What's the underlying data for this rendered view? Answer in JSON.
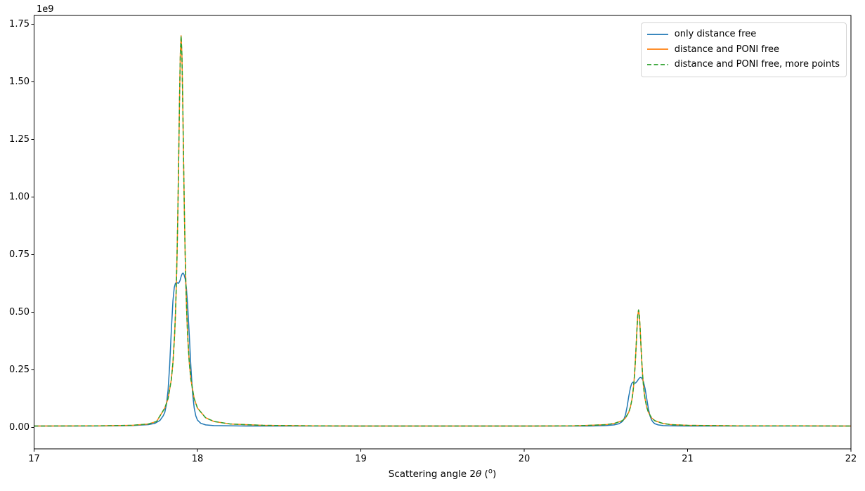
{
  "figure": {
    "background": "#ffffff",
    "xlabel_parts": {
      "pre": "Scattering angle 2",
      "theta": "θ",
      "open_paren": " (",
      "degree_sup": "o",
      "close_paren": ")"
    }
  },
  "chart_data": {
    "type": "line",
    "title": "",
    "xlabel": "Scattering angle 2θ (°)",
    "ylabel": "",
    "y_offset_label": "1e9",
    "grid": false,
    "legend_position": "upper right",
    "legend_border_color": "#d4d4d4",
    "axis_color": "#000000",
    "xlim": [
      17,
      22
    ],
    "ylim_e9": [
      -0.093,
      1.788
    ],
    "x_ticks": [
      17,
      18,
      19,
      20,
      21,
      22
    ],
    "x_tick_labels": [
      "17",
      "18",
      "19",
      "20",
      "21",
      "22"
    ],
    "y_ticks_e9": [
      0.0,
      0.25,
      0.5,
      0.75,
      1.0,
      1.25,
      1.5,
      1.75
    ],
    "y_tick_labels": [
      "0.00",
      "0.25",
      "0.50",
      "0.75",
      "1.00",
      "1.25",
      "1.50",
      "1.75"
    ],
    "series": [
      {
        "name": "only distance free",
        "color": "#1f77b4",
        "dash": null,
        "linewidth": 1.5,
        "curve": "broad_double_hump"
      },
      {
        "name": "distance and PONI free",
        "color": "#ff7f0e",
        "dash": null,
        "linewidth": 1.5,
        "curve": "narrow"
      },
      {
        "name": "distance and PONI free, more points",
        "color": "#2ca02c",
        "dash": [
          6,
          3.5
        ],
        "linewidth": 1.5,
        "curve": "narrow"
      }
    ],
    "peaks": {
      "narrow": [
        {
          "center": 17.9,
          "height_e9": 1.7
        },
        {
          "center": 20.7,
          "height_e9": 0.51
        }
      ],
      "broad_double_hump": [
        {
          "center": 17.91,
          "height_e9": 0.67,
          "shoulder_e9": 0.63
        },
        {
          "center": 20.715,
          "height_e9": 0.22,
          "shoulder_e9": 0.195
        }
      ]
    },
    "baseline_e9": 0.006,
    "curves_e9": {
      "broad_double_hump": [
        [
          17.0,
          0.006
        ],
        [
          17.3,
          0.006
        ],
        [
          17.5,
          0.007
        ],
        [
          17.6,
          0.008
        ],
        [
          17.7,
          0.012
        ],
        [
          17.74,
          0.018
        ],
        [
          17.77,
          0.03
        ],
        [
          17.79,
          0.05
        ],
        [
          17.8,
          0.065
        ],
        [
          17.81,
          0.1
        ],
        [
          17.82,
          0.16
        ],
        [
          17.83,
          0.27
        ],
        [
          17.84,
          0.42
        ],
        [
          17.85,
          0.55
        ],
        [
          17.858,
          0.607
        ],
        [
          17.865,
          0.625
        ],
        [
          17.872,
          0.63
        ],
        [
          17.878,
          0.627
        ],
        [
          17.885,
          0.626
        ],
        [
          17.893,
          0.637
        ],
        [
          17.9,
          0.655
        ],
        [
          17.906,
          0.666
        ],
        [
          17.912,
          0.67
        ],
        [
          17.918,
          0.663
        ],
        [
          17.925,
          0.645
        ],
        [
          17.932,
          0.607
        ],
        [
          17.94,
          0.53
        ],
        [
          17.95,
          0.4
        ],
        [
          17.96,
          0.26
        ],
        [
          17.97,
          0.15
        ],
        [
          17.98,
          0.085
        ],
        [
          17.99,
          0.05
        ],
        [
          18.0,
          0.032
        ],
        [
          18.02,
          0.018
        ],
        [
          18.05,
          0.011
        ],
        [
          18.1,
          0.008
        ],
        [
          18.3,
          0.006
        ],
        [
          19.0,
          0.006
        ],
        [
          20.0,
          0.006
        ],
        [
          20.4,
          0.006
        ],
        [
          20.5,
          0.008
        ],
        [
          20.55,
          0.011
        ],
        [
          20.58,
          0.016
        ],
        [
          20.6,
          0.025
        ],
        [
          20.61,
          0.035
        ],
        [
          20.62,
          0.055
        ],
        [
          20.63,
          0.09
        ],
        [
          20.64,
          0.135
        ],
        [
          20.65,
          0.172
        ],
        [
          20.658,
          0.191
        ],
        [
          20.665,
          0.196
        ],
        [
          20.672,
          0.193
        ],
        [
          20.68,
          0.192
        ],
        [
          20.69,
          0.199
        ],
        [
          20.7,
          0.21
        ],
        [
          20.708,
          0.216
        ],
        [
          20.715,
          0.217
        ],
        [
          20.722,
          0.212
        ],
        [
          20.73,
          0.198
        ],
        [
          20.74,
          0.168
        ],
        [
          20.75,
          0.125
        ],
        [
          20.76,
          0.082
        ],
        [
          20.77,
          0.05
        ],
        [
          20.78,
          0.032
        ],
        [
          20.79,
          0.022
        ],
        [
          20.8,
          0.016
        ],
        [
          20.82,
          0.011
        ],
        [
          20.85,
          0.008
        ],
        [
          20.9,
          0.007
        ],
        [
          21.0,
          0.006
        ],
        [
          21.5,
          0.006
        ],
        [
          22.0,
          0.006
        ]
      ],
      "narrow": [
        [
          17.0,
          0.006
        ],
        [
          17.4,
          0.007
        ],
        [
          17.6,
          0.009
        ],
        [
          17.7,
          0.015
        ],
        [
          17.75,
          0.026
        ],
        [
          17.8,
          0.084
        ],
        [
          17.82,
          0.125
        ],
        [
          17.84,
          0.207
        ],
        [
          17.85,
          0.281
        ],
        [
          17.86,
          0.399
        ],
        [
          17.865,
          0.486
        ],
        [
          17.87,
          0.598
        ],
        [
          17.875,
          0.745
        ],
        [
          17.88,
          0.933
        ],
        [
          17.885,
          1.162
        ],
        [
          17.89,
          1.41
        ],
        [
          17.895,
          1.617
        ],
        [
          17.9,
          1.7
        ],
        [
          17.905,
          1.617
        ],
        [
          17.91,
          1.41
        ],
        [
          17.915,
          1.162
        ],
        [
          17.92,
          0.933
        ],
        [
          17.925,
          0.745
        ],
        [
          17.93,
          0.598
        ],
        [
          17.935,
          0.486
        ],
        [
          17.94,
          0.399
        ],
        [
          17.95,
          0.281
        ],
        [
          17.96,
          0.207
        ],
        [
          17.98,
          0.125
        ],
        [
          18.0,
          0.084
        ],
        [
          18.05,
          0.042
        ],
        [
          18.1,
          0.026
        ],
        [
          18.2,
          0.015
        ],
        [
          18.4,
          0.009
        ],
        [
          18.7,
          0.007
        ],
        [
          19.0,
          0.006
        ],
        [
          20.0,
          0.006
        ],
        [
          20.3,
          0.007
        ],
        [
          20.4,
          0.009
        ],
        [
          20.5,
          0.012
        ],
        [
          20.55,
          0.017
        ],
        [
          20.6,
          0.029
        ],
        [
          20.62,
          0.041
        ],
        [
          20.64,
          0.066
        ],
        [
          20.65,
          0.088
        ],
        [
          20.66,
          0.123
        ],
        [
          20.665,
          0.149
        ],
        [
          20.67,
          0.182
        ],
        [
          20.675,
          0.226
        ],
        [
          20.68,
          0.282
        ],
        [
          20.685,
          0.35
        ],
        [
          20.69,
          0.424
        ],
        [
          20.695,
          0.485
        ],
        [
          20.7,
          0.51
        ],
        [
          20.705,
          0.485
        ],
        [
          20.71,
          0.424
        ],
        [
          20.715,
          0.35
        ],
        [
          20.72,
          0.282
        ],
        [
          20.725,
          0.226
        ],
        [
          20.73,
          0.182
        ],
        [
          20.735,
          0.149
        ],
        [
          20.74,
          0.123
        ],
        [
          20.75,
          0.088
        ],
        [
          20.76,
          0.066
        ],
        [
          20.78,
          0.041
        ],
        [
          20.8,
          0.029
        ],
        [
          20.85,
          0.017
        ],
        [
          20.9,
          0.012
        ],
        [
          21.0,
          0.009
        ],
        [
          21.3,
          0.007
        ],
        [
          21.6,
          0.007
        ],
        [
          22.0,
          0.006
        ]
      ]
    }
  }
}
